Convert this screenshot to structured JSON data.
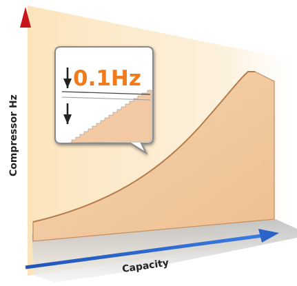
{
  "axes": {
    "y_label": "Compressor Hz",
    "x_label": "Capacity"
  },
  "callout": {
    "value_text": "0.1Hz"
  },
  "colors": {
    "y_axis": "#e0201f",
    "x_axis": "#2a63c9",
    "callout_text": "#f07b1e",
    "curve_fill": "#f2c9a2",
    "background_glow": "#fbe9c8"
  }
}
